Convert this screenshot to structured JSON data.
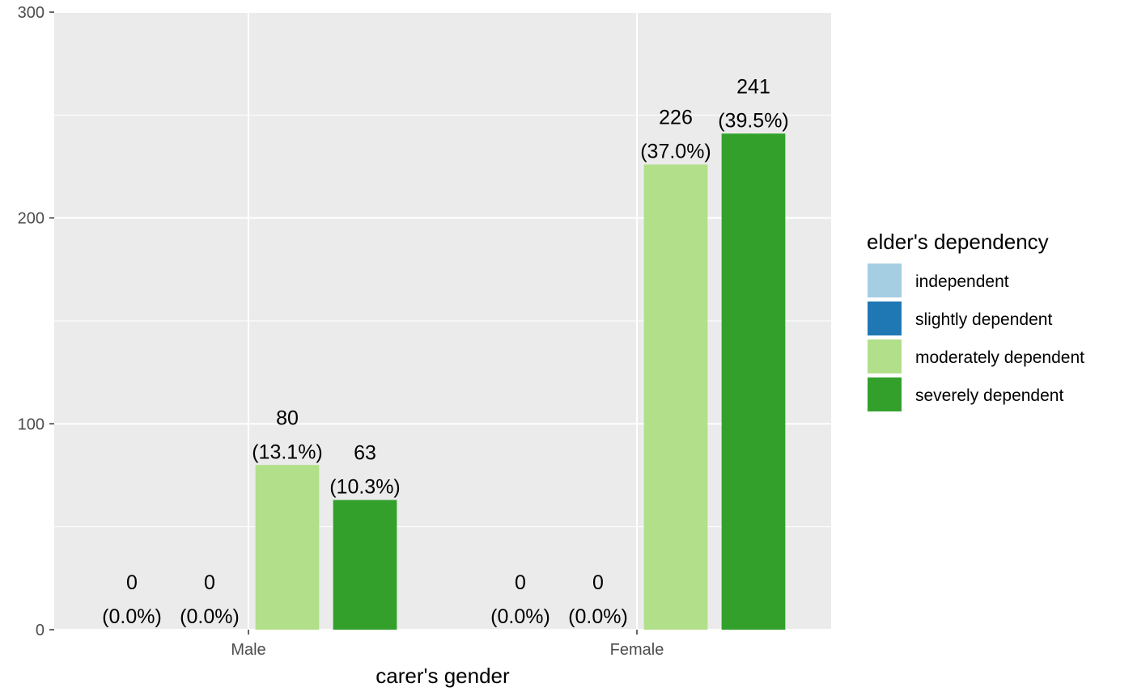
{
  "chart_data": {
    "type": "bar",
    "xlabel": "carer's gender",
    "ylabel": "",
    "title": "",
    "ylim": [
      0,
      300
    ],
    "yticks": [
      0,
      100,
      200,
      300
    ],
    "grid": true,
    "categories": [
      "Male",
      "Female"
    ],
    "series": [
      {
        "name": "independent",
        "color": "#A6CEE3",
        "values": [
          0,
          0
        ],
        "labels": [
          "0",
          "0"
        ],
        "pct_labels": [
          "(0.0%)",
          "(0.0%)"
        ]
      },
      {
        "name": "slightly dependent",
        "color": "#1F78B4",
        "values": [
          0,
          0
        ],
        "labels": [
          "0",
          "0"
        ],
        "pct_labels": [
          "(0.0%)",
          "(0.0%)"
        ]
      },
      {
        "name": "moderately dependent",
        "color": "#B2DF8A",
        "values": [
          80,
          226
        ],
        "labels": [
          "80",
          "226"
        ],
        "pct_labels": [
          "(13.1%)",
          "(37.0%)"
        ]
      },
      {
        "name": "severely dependent",
        "color": "#33A02C",
        "values": [
          63,
          241
        ],
        "labels": [
          "63",
          "241"
        ],
        "pct_labels": [
          "(10.3%)",
          "(39.5%)"
        ]
      }
    ],
    "legend": {
      "title": "elder's dependency",
      "placement": "right"
    },
    "panel_background": "#EBEBEB",
    "grid_color": "#FFFFFF"
  }
}
